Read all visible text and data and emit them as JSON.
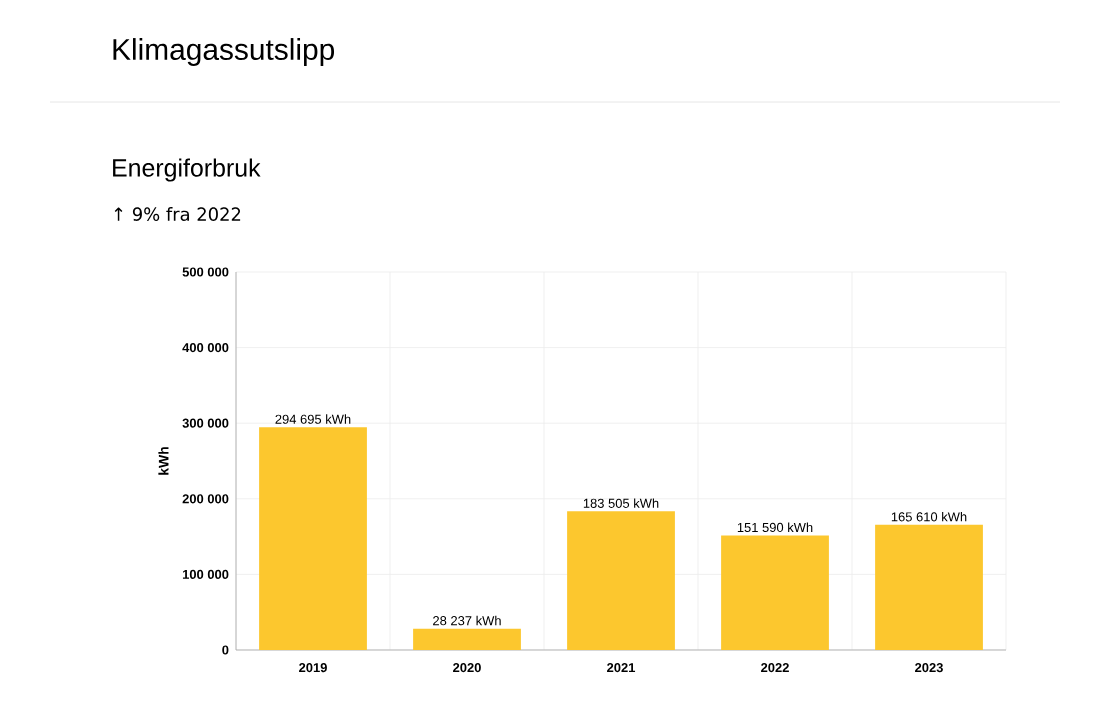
{
  "chart_data": {
    "type": "bar",
    "title": "Klimagassutslipp",
    "subtitle": "Energiforbruk",
    "annotations": [
      "↑ 9% fra 2022"
    ],
    "ylabel": "kWh",
    "categories": [
      "2019",
      "2020",
      "2021",
      "2022",
      "2023"
    ],
    "values": [
      294695,
      28237,
      183505,
      151590,
      165610
    ],
    "value_labels": [
      "294 695 kWh",
      "28 237 kWh",
      "183 505 kWh",
      "151 590 kWh",
      "165 610 kWh"
    ],
    "color": "#fcc72e",
    "ylim": [
      0,
      500000
    ],
    "yticks": [
      {
        "value": 0,
        "label": "0"
      },
      {
        "value": 100000,
        "label": "100 000"
      },
      {
        "value": 200000,
        "label": "200 000"
      },
      {
        "value": 300000,
        "label": "300 000"
      },
      {
        "value": 400000,
        "label": "400 000"
      },
      {
        "value": 500000,
        "label": "500 000"
      }
    ],
    "grid": true
  }
}
